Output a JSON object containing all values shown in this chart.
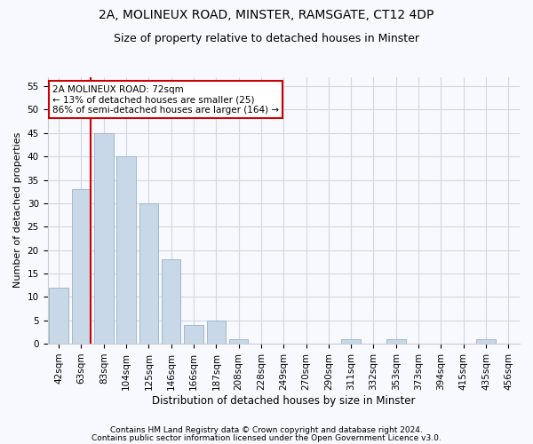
{
  "title1": "2A, MOLINEUX ROAD, MINSTER, RAMSGATE, CT12 4DP",
  "title2": "Size of property relative to detached houses in Minster",
  "xlabel": "Distribution of detached houses by size in Minster",
  "ylabel": "Number of detached properties",
  "categories": [
    "42sqm",
    "63sqm",
    "83sqm",
    "104sqm",
    "125sqm",
    "146sqm",
    "166sqm",
    "187sqm",
    "208sqm",
    "228sqm",
    "249sqm",
    "270sqm",
    "290sqm",
    "311sqm",
    "332sqm",
    "353sqm",
    "373sqm",
    "394sqm",
    "415sqm",
    "435sqm",
    "456sqm"
  ],
  "values": [
    12,
    33,
    45,
    40,
    30,
    18,
    4,
    5,
    1,
    0,
    0,
    0,
    0,
    1,
    0,
    1,
    0,
    0,
    0,
    1,
    0
  ],
  "bar_color": "#c8d8e8",
  "bar_edge_color": "#a0b8cc",
  "vline_index": 1.425,
  "annotation_line1": "2A MOLINEUX ROAD: 72sqm",
  "annotation_line2": "← 13% of detached houses are smaller (25)",
  "annotation_line3": "86% of semi-detached houses are larger (164) →",
  "annotation_box_color": "#ffffff",
  "annotation_box_edge": "#cc0000",
  "vline_color": "#cc0000",
  "ylim": [
    0,
    57
  ],
  "yticks": [
    0,
    5,
    10,
    15,
    20,
    25,
    30,
    35,
    40,
    45,
    50,
    55
  ],
  "footer1": "Contains HM Land Registry data © Crown copyright and database right 2024.",
  "footer2": "Contains public sector information licensed under the Open Government Licence v3.0.",
  "grid_color": "#d0d8e0",
  "title1_fontsize": 10,
  "title2_fontsize": 9,
  "xlabel_fontsize": 8.5,
  "ylabel_fontsize": 8,
  "tick_fontsize": 7.5,
  "annotation_fontsize": 7.5,
  "footer_fontsize": 6.5,
  "background_color": "#f8f8ff"
}
